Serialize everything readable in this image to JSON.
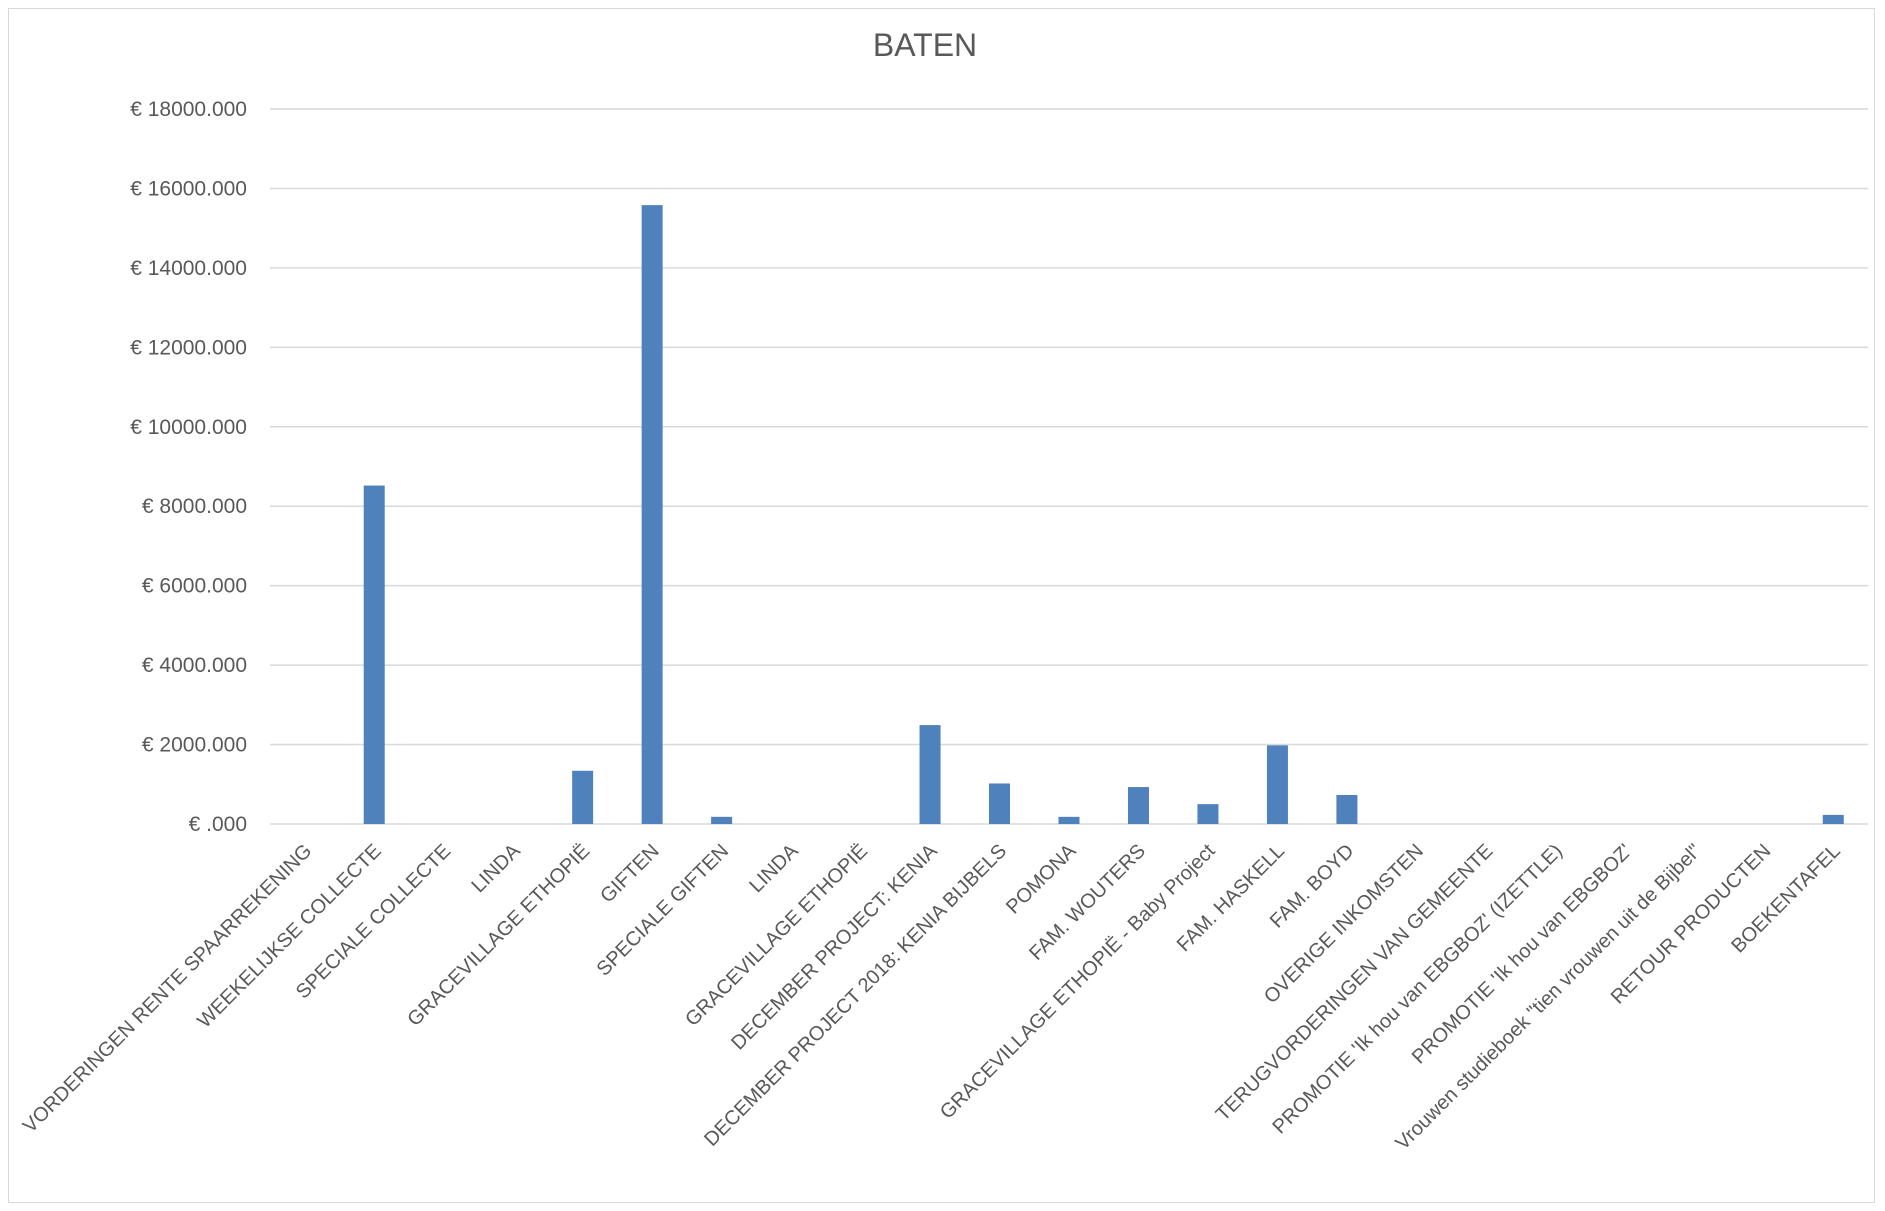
{
  "chart_data": {
    "type": "bar",
    "title": "BATEN",
    "xlabel": "",
    "ylabel": "",
    "ylim": [
      0,
      18000
    ],
    "ytick_values": [
      0,
      2000,
      4000,
      6000,
      8000,
      10000,
      12000,
      14000,
      16000,
      18000
    ],
    "ytick_labels": [
      "€ .000",
      "€ 2000.000",
      "€ 4000.000",
      "€ 6000.000",
      "€ 8000.000",
      "€ 10000.000",
      "€ 12000.000",
      "€ 14000.000",
      "€ 16000.000",
      "€ 18000.000"
    ],
    "grid": true,
    "legend": "none",
    "bar_color": "#4f81bd",
    "categories": [
      "VORDERINGEN RENTE SPAARREKENING",
      "WEEKELIJKSE COLLECTE",
      "SPECIALE COLLECTE",
      "LINDA",
      "GRACEVILLAGE ETHOPIË",
      "GIFTEN",
      "SPECIALE GIFTEN",
      "LINDA",
      "GRACEVILLAGE ETHOPIË",
      "DECEMBER PROJECT: KENIA",
      "DECEMBER PROJECT 2018: KENIA BIJBELS",
      "POMONA",
      "FAM. WOUTERS",
      "GRACEVILLAGE ETHOPIË - Baby Project",
      "FAM. HASKELL",
      "FAM. BOYD",
      "OVERIGE INKOMSTEN",
      "TERUGVORDERINGEN VAN GEMEENTE",
      "PROMOTIE 'Ik hou van EBGBOZ' (IZETTLE)",
      "PROMOTIE 'Ik hou van EBGBOZ'",
      "Vrouwen studieboek \"tien vrouwen uit de Bijbel\"",
      "RETOUR PRODUCTEN",
      "BOEKENTAFEL"
    ],
    "values": [
      0,
      8520,
      0,
      0,
      1340,
      15580,
      180,
      0,
      0,
      2490,
      1020,
      180,
      930,
      500,
      1980,
      730,
      0,
      0,
      0,
      0,
      0,
      0,
      230
    ]
  }
}
